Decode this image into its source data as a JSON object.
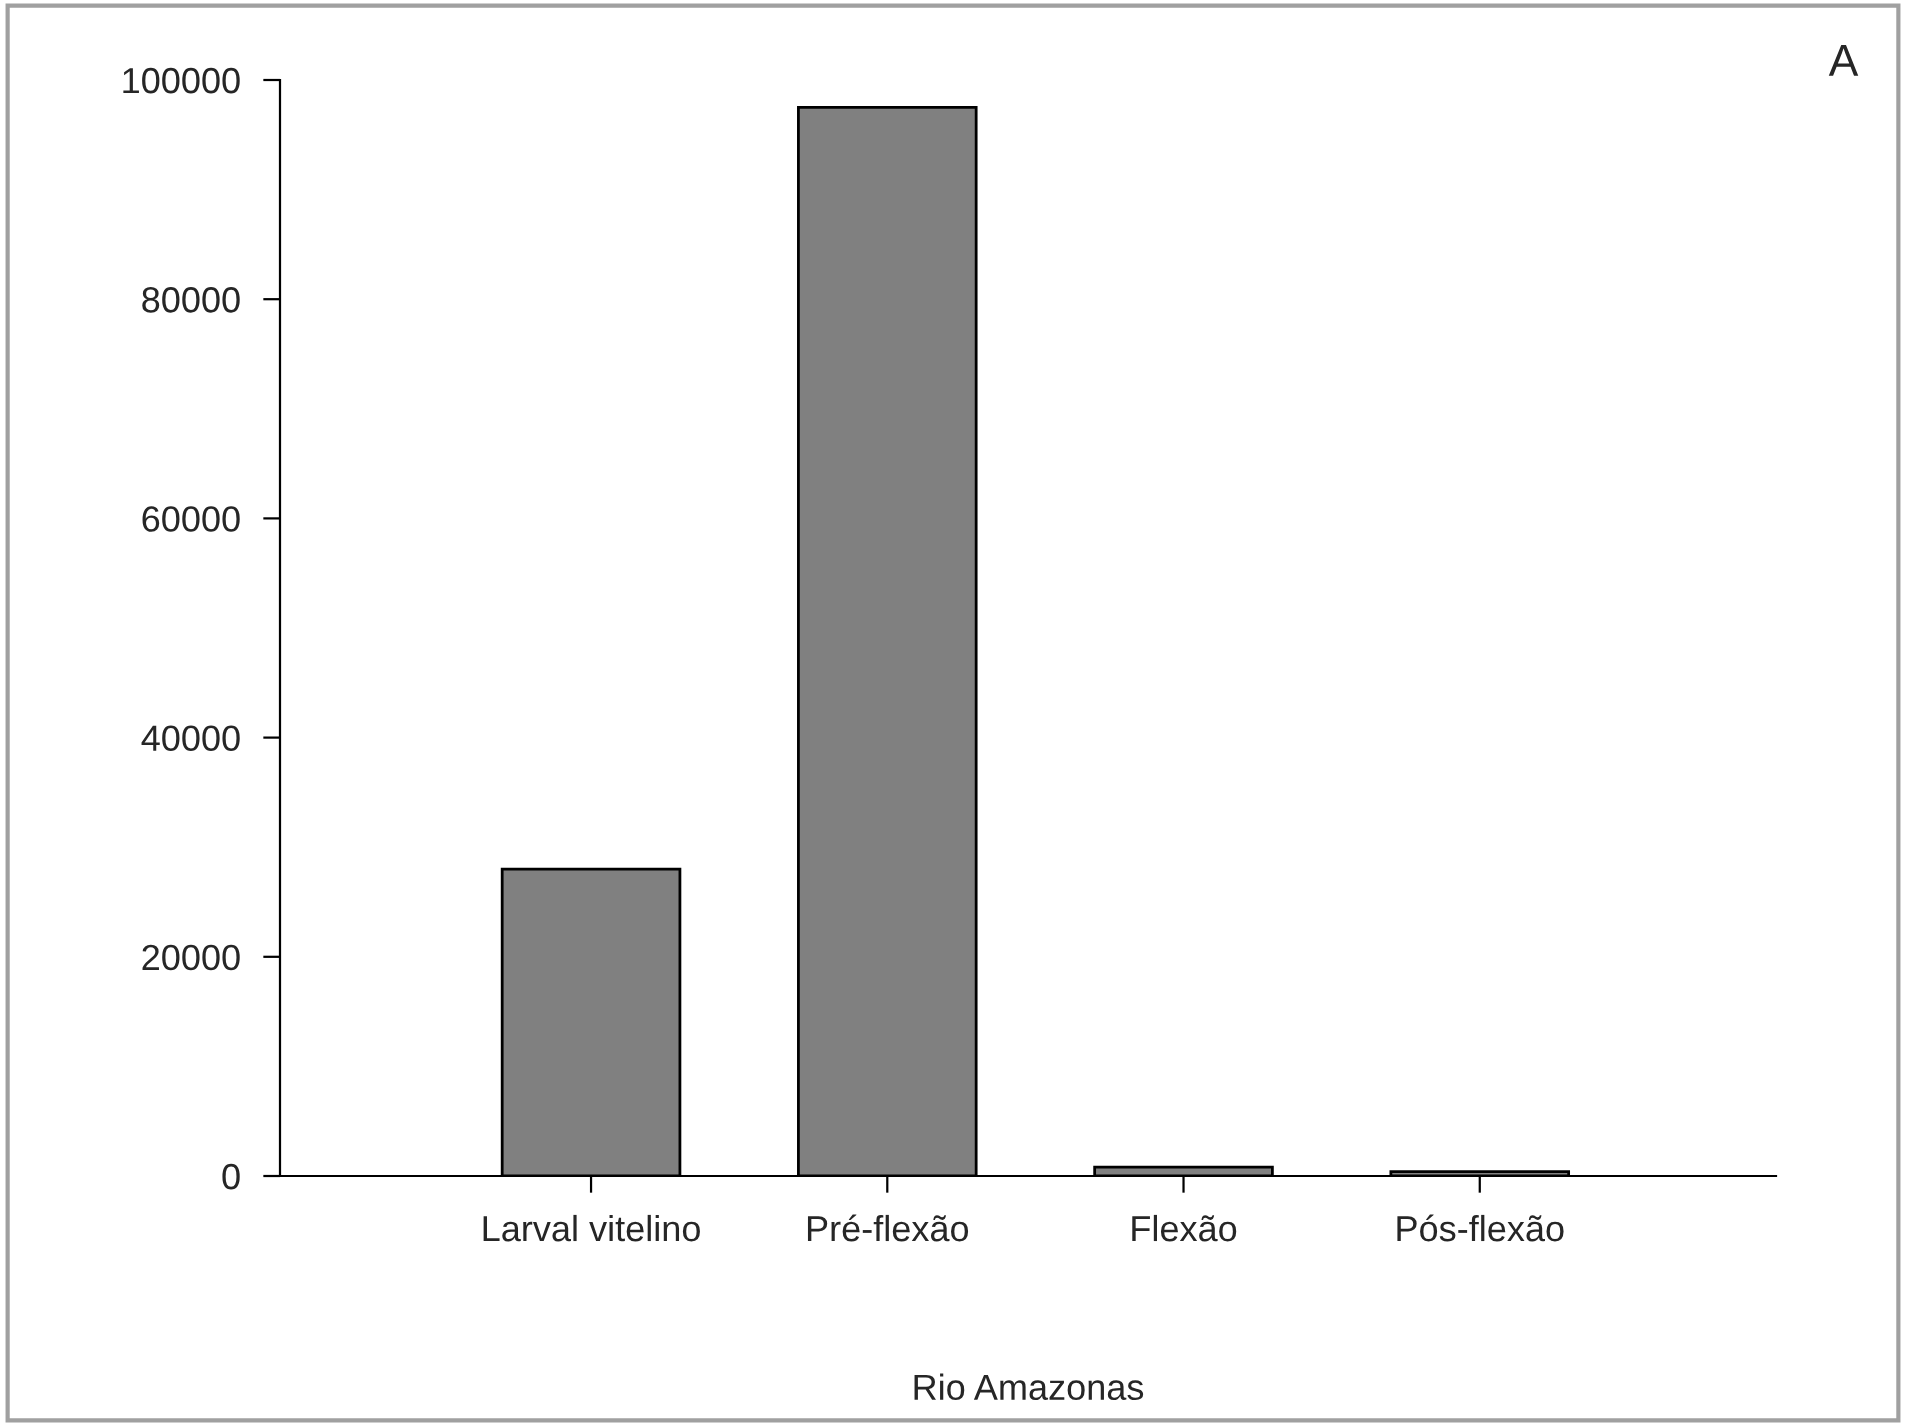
{
  "chart_data": {
    "type": "bar",
    "xlabel": "Rio Amazonas",
    "categories": [
      "Larval vitelino",
      "Pré-flexão",
      "Flexão",
      "Pós-flexão"
    ],
    "values": [
      28000,
      97500,
      800,
      400
    ],
    "color": "#808080",
    "ylim": [
      0,
      100000
    ],
    "yticks": [
      0,
      20000,
      40000,
      60000,
      80000,
      100000
    ],
    "grid": false,
    "annotations": [
      "A"
    ]
  }
}
